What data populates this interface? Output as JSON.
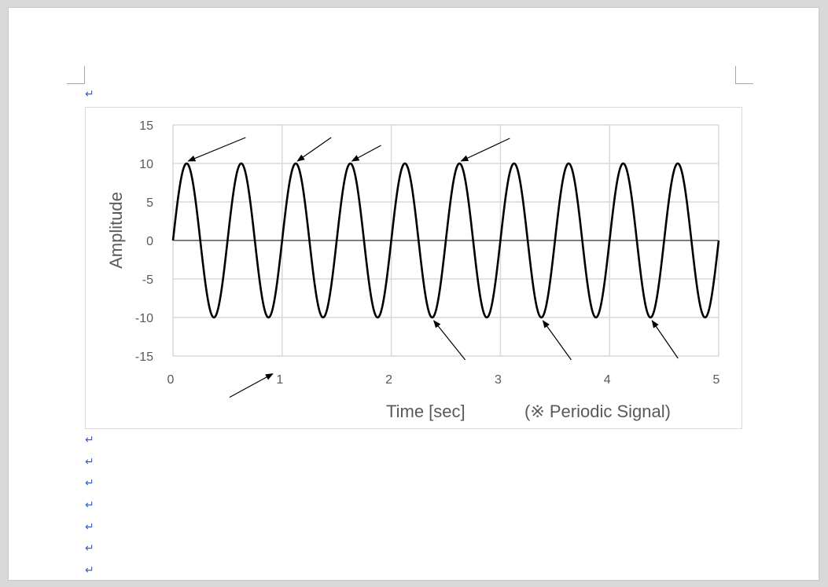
{
  "document": {
    "paragraph_mark": "↵"
  },
  "chart_data": {
    "type": "line",
    "title": "",
    "xlabel": "Time [sec]",
    "ylabel": "Amplitude",
    "note": "(※ Periodic Signal)",
    "xlim": [
      0,
      5
    ],
    "ylim": [
      -15,
      15
    ],
    "x_ticks": [
      0,
      1,
      2,
      3,
      4,
      5
    ],
    "y_ticks": [
      15,
      10,
      5,
      0,
      -5,
      -10,
      -15
    ],
    "grid": true,
    "legend": "none",
    "series": [
      {
        "function": "10*sin(2*pi*2*t)",
        "amplitude": 10,
        "frequency_hz": 2,
        "t_range": [
          0,
          5
        ],
        "color": "#000000"
      }
    ],
    "arrow_targets": [
      {
        "x": 0.125,
        "y": 10
      },
      {
        "x": 1.125,
        "y": 10
      },
      {
        "x": 1.625,
        "y": 10
      },
      {
        "x": 2.625,
        "y": 10
      },
      {
        "x": 2.375,
        "y": -10
      },
      {
        "x": 3.375,
        "y": -10
      },
      {
        "x": 4.375,
        "y": -10
      },
      {
        "x": 0.9,
        "y": -16.9
      }
    ]
  }
}
